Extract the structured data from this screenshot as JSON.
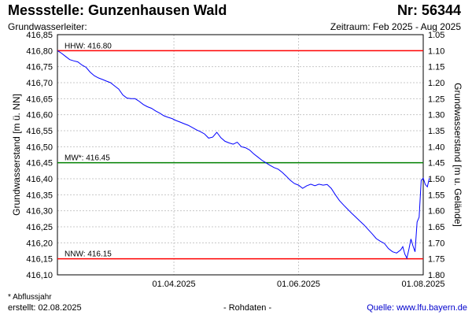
{
  "header": {
    "title": "Messstelle: Gunzenhausen Wald",
    "station_number": "Nr: 56344",
    "aquifer_label": "Grundwasserleiter:",
    "period": "Zeitraum: Feb 2025 - Aug 2025"
  },
  "footer": {
    "footnote": "* Abflussjahr",
    "created": "erstellt:  02.08.2025",
    "raw_data": "- Rohdaten -",
    "source": "Quelle: www.lfu.bayern.de"
  },
  "colors": {
    "series": "#0000ff",
    "hhw": "#ff0000",
    "mw": "#008000",
    "nnw": "#ff0000",
    "grid": "#c8c8c8"
  },
  "chart_data": {
    "type": "line",
    "xlabel": "",
    "ylabel": "Grundwasserstand [m ü. NN]",
    "ylabel_right": "Grundwasserstand [m u. Gelände]",
    "xlim": [
      "2025-02-03",
      "2025-08-01"
    ],
    "ylim": [
      416.1,
      416.85
    ],
    "ylim_right": [
      1.8,
      1.05
    ],
    "grid": true,
    "x_ticks": [
      {
        "date": "2025-04-01",
        "label": "01.04.2025"
      },
      {
        "date": "2025-06-01",
        "label": "01.06.2025"
      },
      {
        "date": "2025-08-01",
        "label": "01.08.2025"
      }
    ],
    "y_ticks": [
      "416,85",
      "416,80",
      "416,75",
      "416,70",
      "416,65",
      "416,60",
      "416,55",
      "416,50",
      "416,45",
      "416,40",
      "416,35",
      "416,30",
      "416,25",
      "416,20",
      "416,15",
      "416,10"
    ],
    "y_ticks_right": [
      "1.05",
      "1.10",
      "1.15",
      "1.20",
      "1.25",
      "1.30",
      "1.35",
      "1.40",
      "1.45",
      "1.50",
      "1.55",
      "1.60",
      "1.65",
      "1.70",
      "1.75",
      "1.80"
    ],
    "reference_lines": [
      {
        "label": "HHW: 416.80",
        "y": 416.8,
        "color": "#ff0000"
      },
      {
        "label": "MW*: 416.45",
        "y": 416.45,
        "color": "#008000"
      },
      {
        "label": "NNW: 416.15",
        "y": 416.15,
        "color": "#ff0000"
      }
    ],
    "series": [
      {
        "points": [
          [
            "2025-02-03",
            416.8
          ],
          [
            "2025-02-05",
            416.792
          ],
          [
            "2025-02-07",
            416.782
          ],
          [
            "2025-02-09",
            416.772
          ],
          [
            "2025-02-11",
            416.768
          ],
          [
            "2025-02-13",
            416.765
          ],
          [
            "2025-02-15",
            416.755
          ],
          [
            "2025-02-17",
            416.748
          ],
          [
            "2025-02-19",
            416.733
          ],
          [
            "2025-02-21",
            416.722
          ],
          [
            "2025-02-23",
            416.715
          ],
          [
            "2025-02-25",
            416.71
          ],
          [
            "2025-02-27",
            416.705
          ],
          [
            "2025-03-01",
            416.7
          ],
          [
            "2025-03-03",
            416.69
          ],
          [
            "2025-03-05",
            416.68
          ],
          [
            "2025-03-07",
            416.662
          ],
          [
            "2025-03-09",
            416.652
          ],
          [
            "2025-03-11",
            416.65
          ],
          [
            "2025-03-13",
            416.65
          ],
          [
            "2025-03-15",
            416.642
          ],
          [
            "2025-03-17",
            416.632
          ],
          [
            "2025-03-19",
            416.625
          ],
          [
            "2025-03-21",
            416.62
          ],
          [
            "2025-03-23",
            416.612
          ],
          [
            "2025-03-25",
            416.605
          ],
          [
            "2025-03-27",
            416.597
          ],
          [
            "2025-03-29",
            416.592
          ],
          [
            "2025-03-31",
            416.588
          ],
          [
            "2025-04-02",
            416.582
          ],
          [
            "2025-04-04",
            416.577
          ],
          [
            "2025-04-06",
            416.572
          ],
          [
            "2025-04-08",
            416.567
          ],
          [
            "2025-04-10",
            416.56
          ],
          [
            "2025-04-12",
            416.553
          ],
          [
            "2025-04-14",
            416.547
          ],
          [
            "2025-04-16",
            416.54
          ],
          [
            "2025-04-18",
            416.527
          ],
          [
            "2025-04-20",
            416.53
          ],
          [
            "2025-04-22",
            416.545
          ],
          [
            "2025-04-24",
            416.528
          ],
          [
            "2025-04-26",
            416.517
          ],
          [
            "2025-04-28",
            416.512
          ],
          [
            "2025-04-30",
            416.508
          ],
          [
            "2025-05-02",
            416.514
          ],
          [
            "2025-05-04",
            416.5
          ],
          [
            "2025-05-06",
            416.497
          ],
          [
            "2025-05-08",
            416.49
          ],
          [
            "2025-05-10",
            416.478
          ],
          [
            "2025-05-12",
            416.468
          ],
          [
            "2025-05-14",
            416.458
          ],
          [
            "2025-05-16",
            416.45
          ],
          [
            "2025-05-18",
            416.442
          ],
          [
            "2025-05-20",
            416.435
          ],
          [
            "2025-05-22",
            416.43
          ],
          [
            "2025-05-24",
            416.42
          ],
          [
            "2025-05-26",
            416.408
          ],
          [
            "2025-05-28",
            416.395
          ],
          [
            "2025-05-30",
            416.385
          ],
          [
            "2025-06-01",
            416.38
          ],
          [
            "2025-06-03",
            416.37
          ],
          [
            "2025-06-05",
            416.378
          ],
          [
            "2025-06-07",
            416.383
          ],
          [
            "2025-06-09",
            416.378
          ],
          [
            "2025-06-11",
            416.383
          ],
          [
            "2025-06-13",
            416.38
          ],
          [
            "2025-06-15",
            416.382
          ],
          [
            "2025-06-17",
            416.37
          ],
          [
            "2025-06-19",
            416.35
          ],
          [
            "2025-06-21",
            416.332
          ],
          [
            "2025-06-23",
            416.318
          ],
          [
            "2025-06-25",
            416.305
          ],
          [
            "2025-06-27",
            416.292
          ],
          [
            "2025-06-29",
            416.28
          ],
          [
            "2025-07-01",
            416.268
          ],
          [
            "2025-07-03",
            416.256
          ],
          [
            "2025-07-05",
            416.242
          ],
          [
            "2025-07-07",
            416.228
          ],
          [
            "2025-07-09",
            416.213
          ],
          [
            "2025-07-11",
            416.205
          ],
          [
            "2025-07-13",
            416.198
          ],
          [
            "2025-07-15",
            416.182
          ],
          [
            "2025-07-17",
            416.172
          ],
          [
            "2025-07-19",
            416.168
          ],
          [
            "2025-07-21",
            416.178
          ],
          [
            "2025-07-22",
            416.188
          ],
          [
            "2025-07-23",
            416.165
          ],
          [
            "2025-07-24",
            416.152
          ],
          [
            "2025-07-25",
            416.18
          ],
          [
            "2025-07-26",
            416.212
          ],
          [
            "2025-07-27",
            416.19
          ],
          [
            "2025-07-28",
            416.172
          ],
          [
            "2025-07-29",
            416.265
          ],
          [
            "2025-07-30",
            416.28
          ],
          [
            "2025-07-31",
            416.395
          ],
          [
            "2025-08-01",
            416.402
          ],
          [
            "2025-08-02",
            416.382
          ],
          [
            "2025-08-03",
            416.375
          ],
          [
            "2025-08-04",
            416.402
          ]
        ]
      }
    ]
  }
}
